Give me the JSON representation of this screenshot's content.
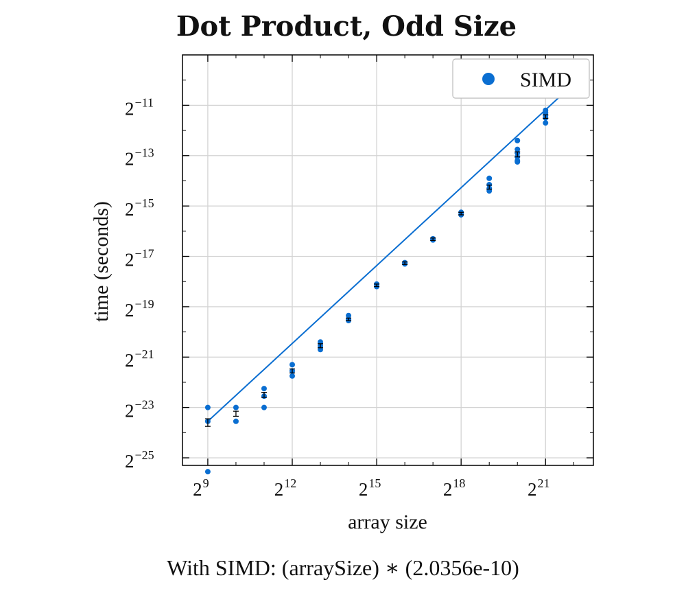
{
  "chart_data": {
    "type": "scatter",
    "title": "Dot Product, Odd Size",
    "xlabel": "array size",
    "ylabel": "time (seconds)",
    "x_scale": "log2",
    "y_scale": "log2",
    "xlim_log2": [
      8.1,
      22.7
    ],
    "ylim_log2": [
      -25.3,
      -9.0
    ],
    "x_ticks_log2": [
      9,
      12,
      15,
      18,
      21
    ],
    "y_ticks_log2": [
      -11,
      -13,
      -15,
      -17,
      -19,
      -21,
      -23,
      -25
    ],
    "grid": true,
    "legend_position": "top-right",
    "series": [
      {
        "name": "SIMD",
        "color": "#0a6ed1",
        "points_log2": [
          [
            9,
            -23.0
          ],
          [
            9,
            -23.55
          ],
          [
            9,
            -25.55
          ],
          [
            10,
            -23.0
          ],
          [
            10,
            -23.55
          ],
          [
            11,
            -22.25
          ],
          [
            11,
            -22.55
          ],
          [
            11,
            -23.0
          ],
          [
            12,
            -21.3
          ],
          [
            12,
            -21.55
          ],
          [
            12,
            -21.75
          ],
          [
            13,
            -20.4
          ],
          [
            13,
            -20.55
          ],
          [
            13,
            -20.7
          ],
          [
            14,
            -19.35
          ],
          [
            14,
            -19.5
          ],
          [
            14,
            -19.55
          ],
          [
            15,
            -18.1
          ],
          [
            15,
            -18.2
          ],
          [
            16,
            -17.25
          ],
          [
            16,
            -17.3
          ],
          [
            17,
            -16.3
          ],
          [
            17,
            -16.35
          ],
          [
            18,
            -15.25
          ],
          [
            18,
            -15.35
          ],
          [
            19,
            -13.9
          ],
          [
            19,
            -14.3
          ],
          [
            19,
            -14.4
          ],
          [
            19,
            -14.15
          ],
          [
            20,
            -12.4
          ],
          [
            20,
            -12.75
          ],
          [
            20,
            -12.9
          ],
          [
            20,
            -13.05
          ],
          [
            20,
            -13.2
          ],
          [
            20,
            -13.25
          ],
          [
            21,
            -11.2
          ],
          [
            21,
            -11.3
          ],
          [
            21,
            -11.4
          ],
          [
            21,
            -11.5
          ],
          [
            21,
            -11.7
          ],
          [
            22,
            -10.15
          ]
        ],
        "error_bars_log2": [
          {
            "x": 9,
            "y": -23.6,
            "lo": -23.75,
            "hi": -23.45
          },
          {
            "x": 10,
            "y": -23.25,
            "lo": -23.35,
            "hi": -23.15
          },
          {
            "x": 11,
            "y": -22.5,
            "lo": -22.6,
            "hi": -22.4
          },
          {
            "x": 12,
            "y": -21.55,
            "lo": -21.63,
            "hi": -21.47
          },
          {
            "x": 13,
            "y": -20.55,
            "lo": -20.63,
            "hi": -20.47
          },
          {
            "x": 14,
            "y": -19.5,
            "lo": -19.55,
            "hi": -19.45
          },
          {
            "x": 15,
            "y": -18.15,
            "lo": -18.2,
            "hi": -18.1
          },
          {
            "x": 16,
            "y": -17.27,
            "lo": -17.32,
            "hi": -17.22
          },
          {
            "x": 17,
            "y": -16.32,
            "lo": -16.37,
            "hi": -16.27
          },
          {
            "x": 18,
            "y": -15.3,
            "lo": -15.35,
            "hi": -15.25
          },
          {
            "x": 19,
            "y": -14.25,
            "lo": -14.33,
            "hi": -14.17
          },
          {
            "x": 20,
            "y": -12.95,
            "lo": -13.05,
            "hi": -12.85
          },
          {
            "x": 21,
            "y": -11.45,
            "lo": -11.52,
            "hi": -11.38
          },
          {
            "x": 22,
            "y": -10.2,
            "lo": -10.25,
            "hi": -10.15
          }
        ],
        "fit_line_log2": [
          [
            9,
            -23.55
          ],
          [
            22,
            -10.15
          ]
        ]
      }
    ],
    "caption": "With SIMD:  (arraySize) ∗ (2.0356e-10)"
  },
  "colors": {
    "marker": "#0a6ed1",
    "grid": "#d3d3d3",
    "errorbar": "#000000"
  }
}
